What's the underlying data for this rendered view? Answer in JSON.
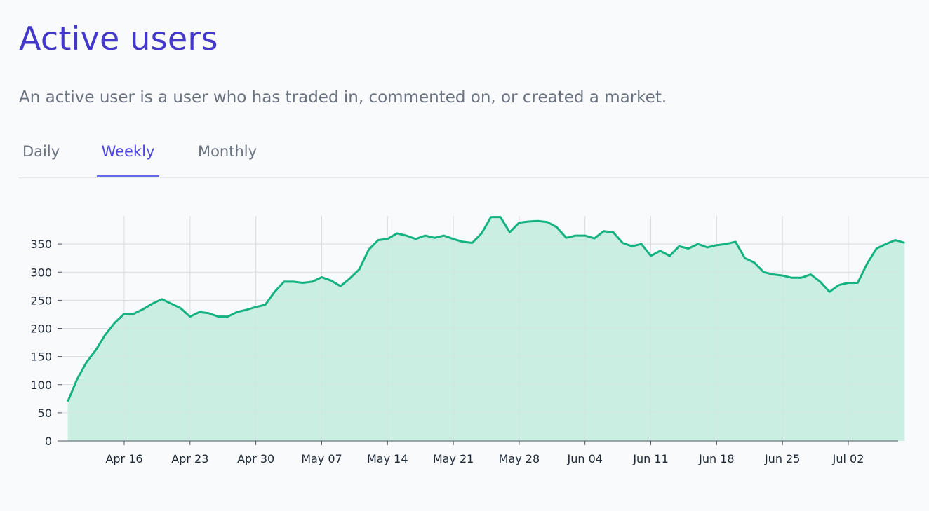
{
  "header": {
    "title": "Active users",
    "subtitle": "An active user is a user who has traded in, commented on, or created a market."
  },
  "tabs": [
    {
      "label": "Daily",
      "active": false
    },
    {
      "label": "Weekly",
      "active": true
    },
    {
      "label": "Monthly",
      "active": false
    }
  ],
  "colors": {
    "title": "#4338ca",
    "tab_active": "#4f46e5",
    "line": "#13b27f",
    "area": "#c8ede1",
    "grid": "#d9dde3"
  },
  "chart_data": {
    "type": "area",
    "title": "",
    "xlabel": "",
    "ylabel": "",
    "grid": true,
    "ylim": [
      0,
      400
    ],
    "y_ticks": [
      0,
      50,
      100,
      150,
      200,
      250,
      300,
      350
    ],
    "x_start": "2022-04-10",
    "x_ticks": [
      "Apr 16",
      "Apr 23",
      "Apr 30",
      "May 07",
      "May 14",
      "May 21",
      "May 28",
      "Jun 04",
      "Jun 11",
      "Jun 18",
      "Jun 25",
      "Jul 02"
    ],
    "x_tick_dates": [
      "2022-04-16",
      "2022-04-23",
      "2022-04-30",
      "2022-05-07",
      "2022-05-14",
      "2022-05-21",
      "2022-05-28",
      "2022-06-04",
      "2022-06-11",
      "2022-06-18",
      "2022-06-25",
      "2022-07-02"
    ],
    "series": [
      {
        "values": [
          70,
          110,
          140,
          162,
          189,
          210,
          226,
          226,
          234,
          244,
          252,
          244,
          236,
          221,
          229,
          227,
          221,
          221,
          229,
          233,
          238,
          242,
          265,
          283,
          283,
          281,
          283,
          291,
          285,
          275,
          289,
          305,
          340,
          357,
          359,
          369,
          365,
          359,
          365,
          361,
          365,
          359,
          354,
          352,
          369,
          398,
          398,
          371,
          388,
          390,
          391,
          389,
          380,
          361,
          365,
          365,
          360,
          373,
          371,
          352,
          346,
          350,
          329,
          338,
          329,
          346,
          342,
          350,
          344,
          348,
          350,
          354,
          325,
          317,
          300,
          296,
          294,
          290,
          290,
          296,
          283,
          265,
          277,
          281,
          281,
          315,
          342,
          350,
          357,
          352
        ]
      }
    ]
  }
}
